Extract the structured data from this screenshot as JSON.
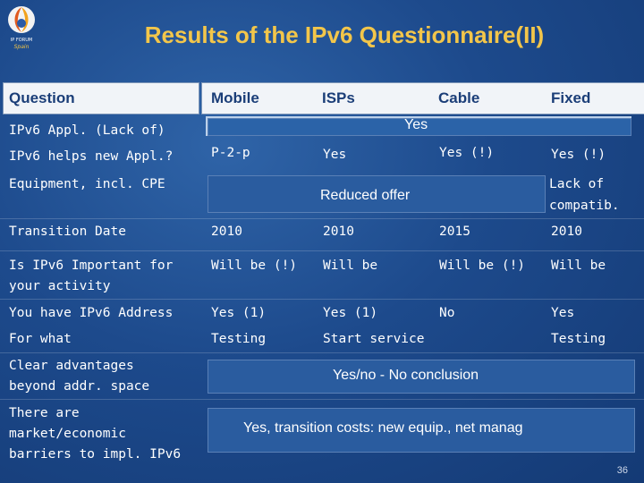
{
  "logo": {
    "line1": "IP FORUM",
    "line2": "Spain"
  },
  "title": "Results of the IPv6 Questionnaire(II)",
  "headers": [
    "Question",
    "Mobile",
    "ISPs",
    "Cable",
    "Fixed"
  ],
  "rows": {
    "r1": {
      "question": "IPv6 Appl. (Lack of)",
      "span": "Yes"
    },
    "r2": {
      "question": "IPv6 helps new Appl.?",
      "mobile": "P-2-p",
      "isps": "Yes",
      "cable": "Yes (!)",
      "fixed": "Yes (!)"
    },
    "r3": {
      "question": "Equipment, incl. CPE",
      "span": "Reduced offer",
      "fixed_l1": "Lack of",
      "fixed_l2": "compatib."
    },
    "r4": {
      "question": "Transition Date",
      "mobile": "2010",
      "isps": "2010",
      "cable": "2015",
      "fixed": "2010"
    },
    "r5": {
      "question_l1": "Is IPv6 Important for",
      "question_l2": "your activity",
      "mobile": "Will be (!)",
      "isps": "Will be",
      "cable": "Will be (!)",
      "fixed": "Will be"
    },
    "r6": {
      "question": "You have IPv6 Address",
      "mobile": "Yes (1)",
      "isps": "Yes (1)",
      "cable": "No",
      "fixed": "Yes"
    },
    "r7": {
      "question": "For what",
      "mobile": "Testing",
      "isps": "Start service",
      "fixed": "Testing"
    },
    "r8": {
      "question_l1": "Clear advantages",
      "question_l2": "beyond addr. space",
      "span": "Yes/no - No conclusion"
    },
    "r9": {
      "question_l1": "There are",
      "question_l2": "market/economic",
      "question_l3": "barriers to impl. IPv6",
      "span": "Yes, transition costs: new equip., net manag"
    }
  },
  "page_number": "36"
}
